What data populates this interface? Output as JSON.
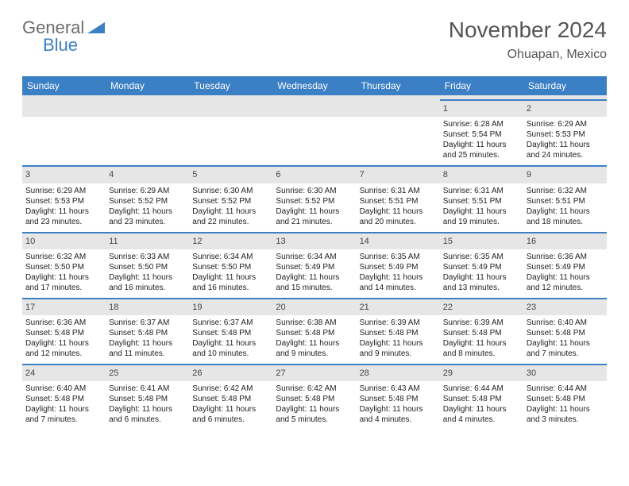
{
  "logo": {
    "text1": "General",
    "text2": "Blue"
  },
  "title": "November 2024",
  "location": "Ohuapan, Mexico",
  "dayHeaders": [
    "Sunday",
    "Monday",
    "Tuesday",
    "Wednesday",
    "Thursday",
    "Friday",
    "Saturday"
  ],
  "colors": {
    "headerBar": "#3b7fc4",
    "cellStripe": "#e6e6e6",
    "text": "#333333",
    "background": "#ffffff"
  },
  "fonts": {
    "title_pt": 28,
    "location_pt": 16,
    "dayhead_pt": 12,
    "cell_pt": 10
  },
  "weeks": [
    [
      null,
      null,
      null,
      null,
      null,
      {
        "n": 1,
        "sunrise": "6:28 AM",
        "sunset": "5:54 PM",
        "daylight": "11 hours and 25 minutes."
      },
      {
        "n": 2,
        "sunrise": "6:29 AM",
        "sunset": "5:53 PM",
        "daylight": "11 hours and 24 minutes."
      }
    ],
    [
      {
        "n": 3,
        "sunrise": "6:29 AM",
        "sunset": "5:53 PM",
        "daylight": "11 hours and 23 minutes."
      },
      {
        "n": 4,
        "sunrise": "6:29 AM",
        "sunset": "5:52 PM",
        "daylight": "11 hours and 23 minutes."
      },
      {
        "n": 5,
        "sunrise": "6:30 AM",
        "sunset": "5:52 PM",
        "daylight": "11 hours and 22 minutes."
      },
      {
        "n": 6,
        "sunrise": "6:30 AM",
        "sunset": "5:52 PM",
        "daylight": "11 hours and 21 minutes."
      },
      {
        "n": 7,
        "sunrise": "6:31 AM",
        "sunset": "5:51 PM",
        "daylight": "11 hours and 20 minutes."
      },
      {
        "n": 8,
        "sunrise": "6:31 AM",
        "sunset": "5:51 PM",
        "daylight": "11 hours and 19 minutes."
      },
      {
        "n": 9,
        "sunrise": "6:32 AM",
        "sunset": "5:51 PM",
        "daylight": "11 hours and 18 minutes."
      }
    ],
    [
      {
        "n": 10,
        "sunrise": "6:32 AM",
        "sunset": "5:50 PM",
        "daylight": "11 hours and 17 minutes."
      },
      {
        "n": 11,
        "sunrise": "6:33 AM",
        "sunset": "5:50 PM",
        "daylight": "11 hours and 16 minutes."
      },
      {
        "n": 12,
        "sunrise": "6:34 AM",
        "sunset": "5:50 PM",
        "daylight": "11 hours and 16 minutes."
      },
      {
        "n": 13,
        "sunrise": "6:34 AM",
        "sunset": "5:49 PM",
        "daylight": "11 hours and 15 minutes."
      },
      {
        "n": 14,
        "sunrise": "6:35 AM",
        "sunset": "5:49 PM",
        "daylight": "11 hours and 14 minutes."
      },
      {
        "n": 15,
        "sunrise": "6:35 AM",
        "sunset": "5:49 PM",
        "daylight": "11 hours and 13 minutes."
      },
      {
        "n": 16,
        "sunrise": "6:36 AM",
        "sunset": "5:49 PM",
        "daylight": "11 hours and 12 minutes."
      }
    ],
    [
      {
        "n": 17,
        "sunrise": "6:36 AM",
        "sunset": "5:48 PM",
        "daylight": "11 hours and 12 minutes."
      },
      {
        "n": 18,
        "sunrise": "6:37 AM",
        "sunset": "5:48 PM",
        "daylight": "11 hours and 11 minutes."
      },
      {
        "n": 19,
        "sunrise": "6:37 AM",
        "sunset": "5:48 PM",
        "daylight": "11 hours and 10 minutes."
      },
      {
        "n": 20,
        "sunrise": "6:38 AM",
        "sunset": "5:48 PM",
        "daylight": "11 hours and 9 minutes."
      },
      {
        "n": 21,
        "sunrise": "6:39 AM",
        "sunset": "5:48 PM",
        "daylight": "11 hours and 9 minutes."
      },
      {
        "n": 22,
        "sunrise": "6:39 AM",
        "sunset": "5:48 PM",
        "daylight": "11 hours and 8 minutes."
      },
      {
        "n": 23,
        "sunrise": "6:40 AM",
        "sunset": "5:48 PM",
        "daylight": "11 hours and 7 minutes."
      }
    ],
    [
      {
        "n": 24,
        "sunrise": "6:40 AM",
        "sunset": "5:48 PM",
        "daylight": "11 hours and 7 minutes."
      },
      {
        "n": 25,
        "sunrise": "6:41 AM",
        "sunset": "5:48 PM",
        "daylight": "11 hours and 6 minutes."
      },
      {
        "n": 26,
        "sunrise": "6:42 AM",
        "sunset": "5:48 PM",
        "daylight": "11 hours and 6 minutes."
      },
      {
        "n": 27,
        "sunrise": "6:42 AM",
        "sunset": "5:48 PM",
        "daylight": "11 hours and 5 minutes."
      },
      {
        "n": 28,
        "sunrise": "6:43 AM",
        "sunset": "5:48 PM",
        "daylight": "11 hours and 4 minutes."
      },
      {
        "n": 29,
        "sunrise": "6:44 AM",
        "sunset": "5:48 PM",
        "daylight": "11 hours and 4 minutes."
      },
      {
        "n": 30,
        "sunrise": "6:44 AM",
        "sunset": "5:48 PM",
        "daylight": "11 hours and 3 minutes."
      }
    ]
  ]
}
